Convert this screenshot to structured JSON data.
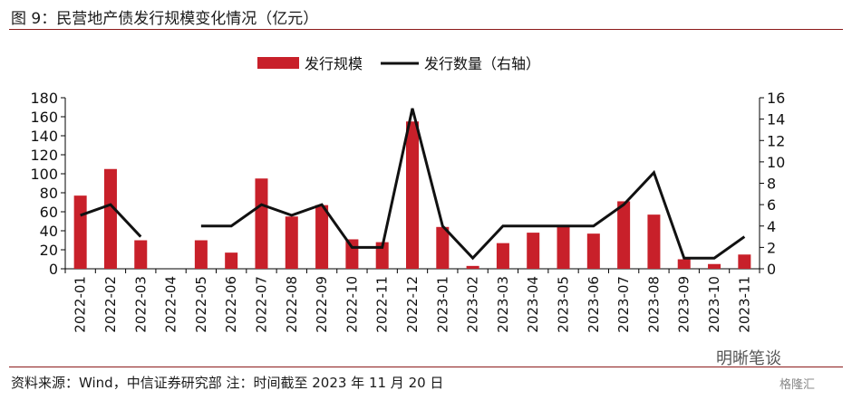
{
  "title": "图 9：民营地产债发行规模变化情况（亿元）",
  "source": "资料来源：Wind，中信证券研究部  注：时间截至 2023 年 11 月 20 日",
  "watermark": "明晰笔谈",
  "watermark2": "格隆汇",
  "chart_data": {
    "type": "bar",
    "categories": [
      "2022-01",
      "2022-02",
      "2022-03",
      "2022-04",
      "2022-05",
      "2022-06",
      "2022-07",
      "2022-08",
      "2022-09",
      "2022-10",
      "2022-11",
      "2022-12",
      "2023-01",
      "2023-02",
      "2023-03",
      "2023-04",
      "2023-05",
      "2023-06",
      "2023-07",
      "2023-08",
      "2023-09",
      "2023-10",
      "2023-11"
    ],
    "series": [
      {
        "name": "发行规模",
        "type": "bar",
        "axis": "left",
        "color": "#c8202a",
        "values": [
          77,
          105,
          30,
          0,
          30,
          17,
          95,
          55,
          67,
          31,
          28,
          155,
          44,
          3,
          27,
          38,
          44,
          37,
          71,
          57,
          10,
          5,
          15
        ]
      },
      {
        "name": "发行数量（右轴）",
        "type": "line",
        "axis": "right",
        "color": "#111111",
        "values": [
          5,
          6,
          3,
          null,
          4,
          4,
          6,
          5,
          6,
          2,
          2,
          15,
          4,
          1,
          4,
          4,
          4,
          4,
          6,
          9,
          1,
          1,
          3
        ]
      }
    ],
    "y_left": {
      "min": 0,
      "max": 180,
      "ticks": [
        0,
        20,
        40,
        60,
        80,
        100,
        120,
        140,
        160,
        180
      ]
    },
    "y_right": {
      "min": 0,
      "max": 16,
      "ticks": [
        0,
        2,
        4,
        6,
        8,
        10,
        12,
        14,
        16
      ]
    },
    "legend": "top-center"
  }
}
